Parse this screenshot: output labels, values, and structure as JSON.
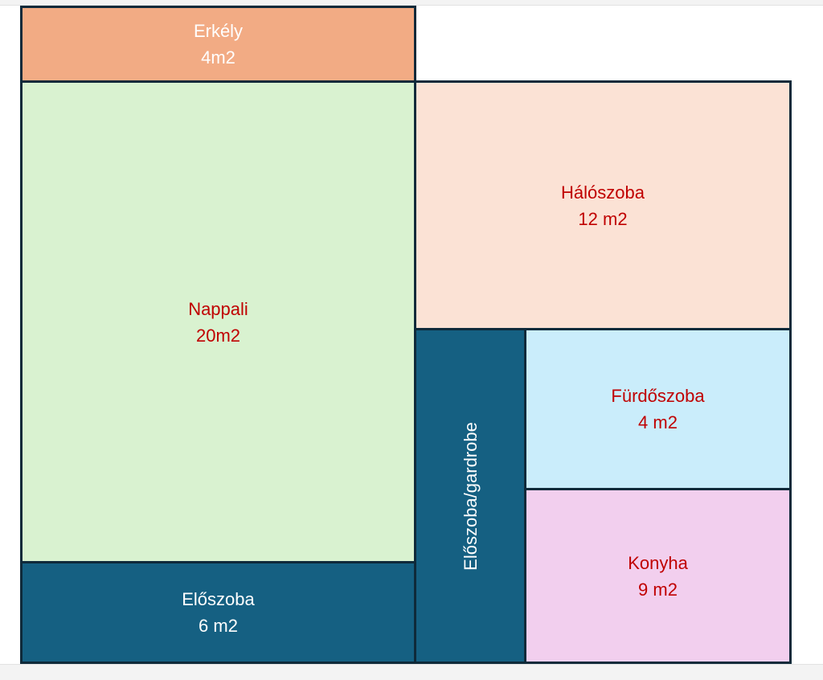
{
  "colors": {
    "wall": "#0f2a3a",
    "red_text": "#c00000",
    "white_text": "#ffffff"
  },
  "rooms": {
    "erkely": {
      "name": "Erkély",
      "area": "4m2",
      "fill": "#f2ab84",
      "text_color": "#ffffff"
    },
    "nappali": {
      "name": "Nappali",
      "area": "20m2",
      "fill": "#d9f2d0",
      "text_color": "#c00000"
    },
    "eloszoba": {
      "name": "Előszoba",
      "area": "6 m2",
      "fill": "#156082",
      "text_color": "#ffffff"
    },
    "halo": {
      "name": "Hálószoba",
      "area": "12 m2",
      "fill": "#fbe2d5",
      "text_color": "#c00000"
    },
    "gardrobe": {
      "name": "Előszoba/gardrobe",
      "fill": "#156082",
      "text_color": "#ffffff"
    },
    "furdo": {
      "name": "Fürdőszoba",
      "area": "4 m2",
      "fill": "#caedfb",
      "text_color": "#c00000"
    },
    "konyha": {
      "name": "Konyha",
      "area": "9 m2",
      "fill": "#f2cfee",
      "text_color": "#c00000"
    }
  }
}
